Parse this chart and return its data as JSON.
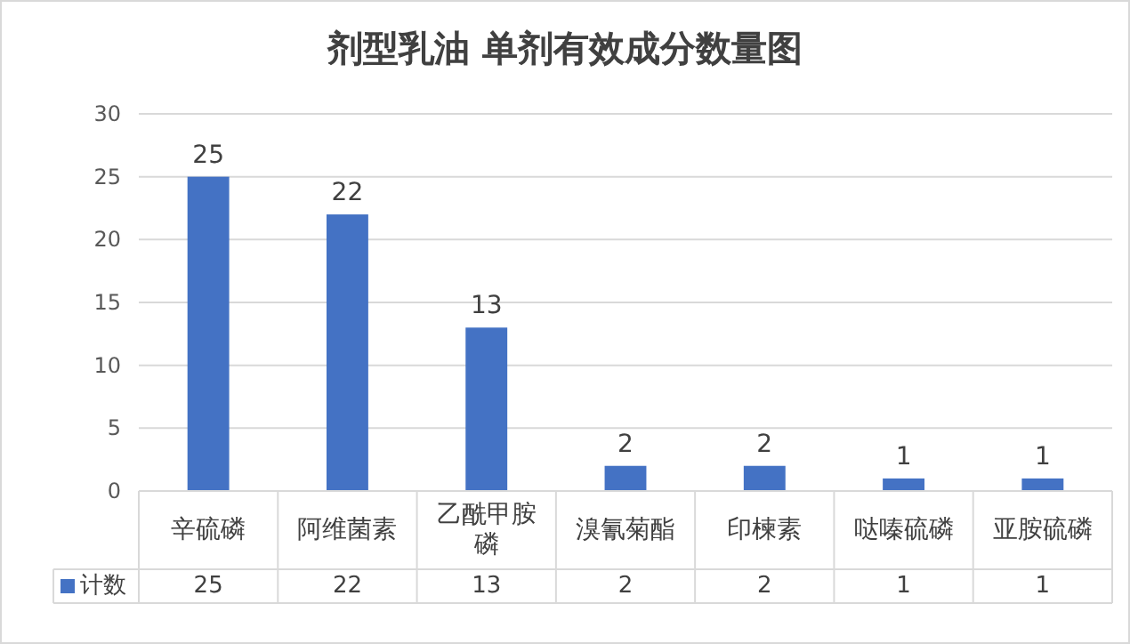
{
  "chart_data": {
    "type": "bar",
    "title": "剂型乳油 单剂有效成分数量图",
    "categories": [
      "辛硫磷",
      "阿维菌素",
      "乙酰甲胺磷",
      "溴氰菊酯",
      "印楝素",
      "哒嗪硫磷",
      "亚胺硫磷"
    ],
    "series": [
      {
        "name": "计数",
        "color": "#4472c4",
        "values": [
          25,
          22,
          13,
          2,
          2,
          1,
          1
        ],
        "value_labels": [
          "25",
          "22",
          "13",
          "2",
          "2",
          "1",
          "1"
        ]
      }
    ],
    "ylim": [
      0,
      30
    ],
    "yticks": [
      0,
      5,
      10,
      15,
      20,
      25,
      30
    ],
    "grid": "y",
    "data_labels": true,
    "annotations": [
      "25",
      "22",
      "13",
      "2",
      "2",
      "1",
      "1"
    ]
  }
}
